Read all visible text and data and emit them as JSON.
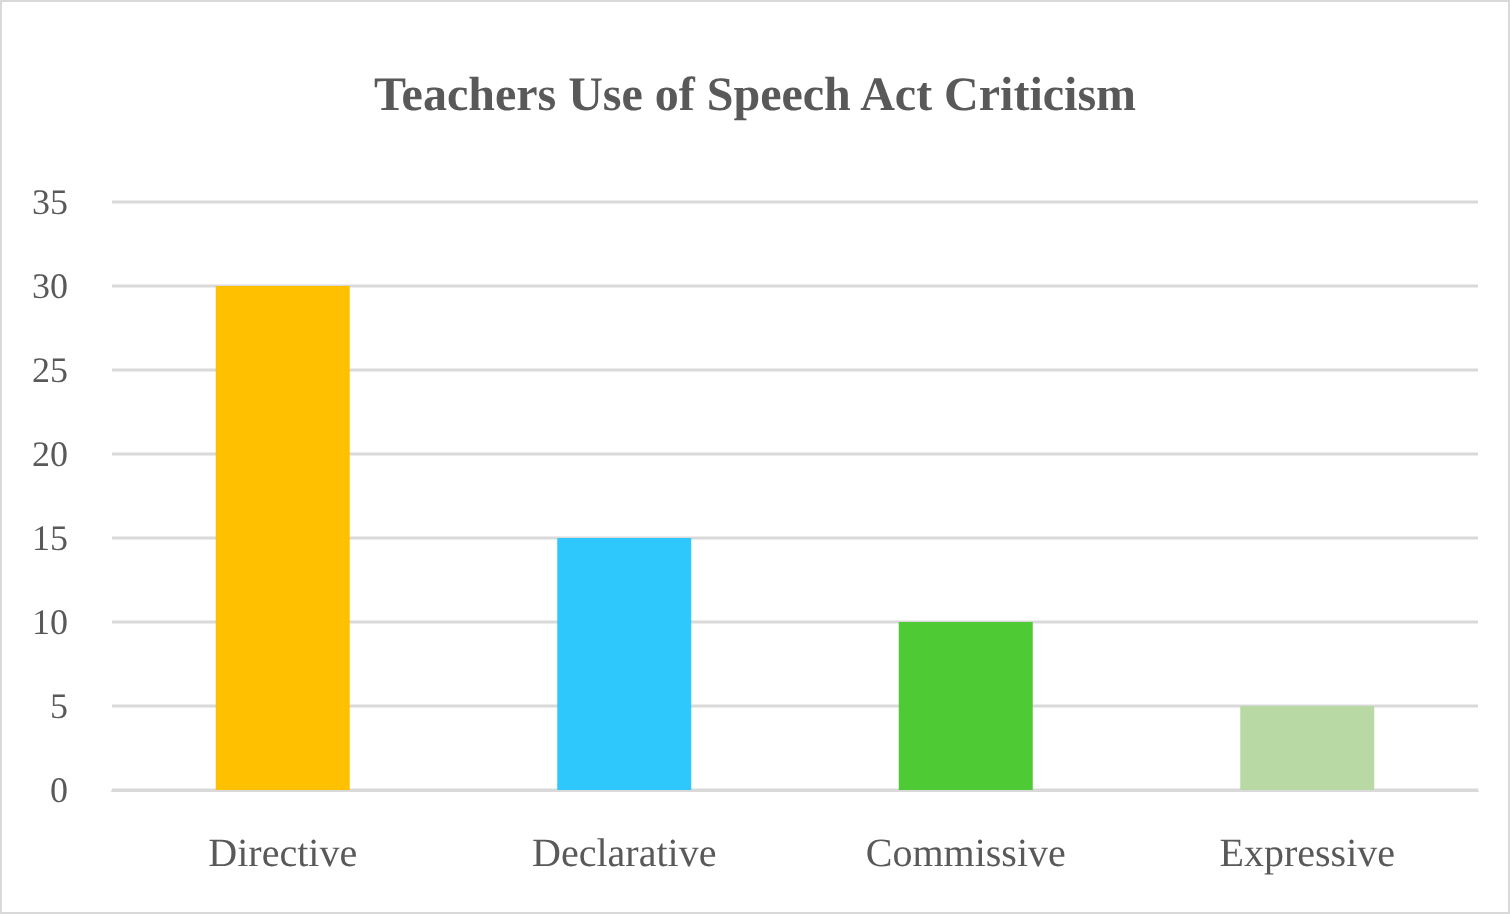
{
  "chart_data": {
    "type": "bar",
    "title": "Teachers Use of Speech Act Criticism",
    "categories": [
      "Directive",
      "Declarative",
      "Commissive",
      "Expressive"
    ],
    "values": [
      30,
      15,
      10,
      5
    ],
    "colors": [
      "#ffc000",
      "#2ec8fc",
      "#4ecb34",
      "#b9d9a4"
    ],
    "ylim": [
      0,
      35
    ],
    "yticks": [
      0,
      5,
      10,
      15,
      20,
      25,
      30,
      35
    ],
    "grid": "y"
  }
}
